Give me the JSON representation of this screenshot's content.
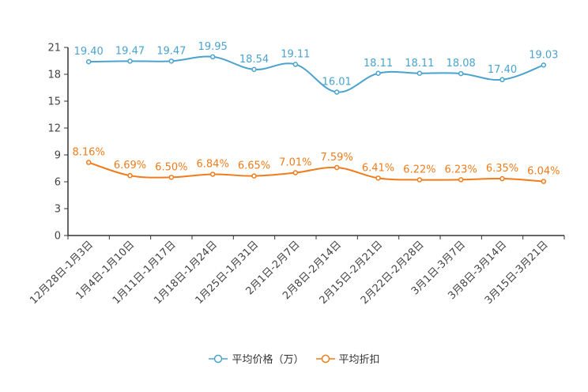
{
  "chart_data": {
    "type": "line",
    "categories": [
      "12月28日-1月3日",
      "1月4日-1月10日",
      "1月11日-1月17日",
      "1月18日-1月24日",
      "1月25日-1月31日",
      "2月1日-2月7日",
      "2月8日-2月14日",
      "2月15日-2月21日",
      "2月22日-2月28日",
      "3月1日-3月7日",
      "3月8日-3月14日",
      "3月15日-3月21日"
    ],
    "ylim": [
      0,
      21
    ],
    "yticks": [
      "0",
      "3",
      "6",
      "9",
      "12",
      "15",
      "18",
      "21"
    ],
    "series": [
      {
        "name": "平均价格（万）",
        "color": "#4aa3cf",
        "values": [
          19.4,
          19.47,
          19.47,
          19.95,
          18.54,
          19.11,
          16.01,
          18.11,
          18.11,
          18.08,
          17.4,
          19.03
        ],
        "labels": [
          "19.40",
          "19.47",
          "19.47",
          "19.95",
          "18.54",
          "19.11",
          "16.01",
          "18.11",
          "18.11",
          "18.08",
          "17.40",
          "19.03"
        ]
      },
      {
        "name": "平均折扣",
        "color": "#f07c1b",
        "values": [
          8.16,
          6.69,
          6.5,
          6.84,
          6.65,
          7.01,
          7.59,
          6.41,
          6.22,
          6.23,
          6.35,
          6.04
        ],
        "labels": [
          "8.16%",
          "6.69%",
          "6.50%",
          "6.84%",
          "6.65%",
          "7.01%",
          "7.59%",
          "6.41%",
          "6.22%",
          "6.23%",
          "6.35%",
          "6.04%"
        ]
      }
    ],
    "legend_position": "bottom-center",
    "grid": false
  }
}
